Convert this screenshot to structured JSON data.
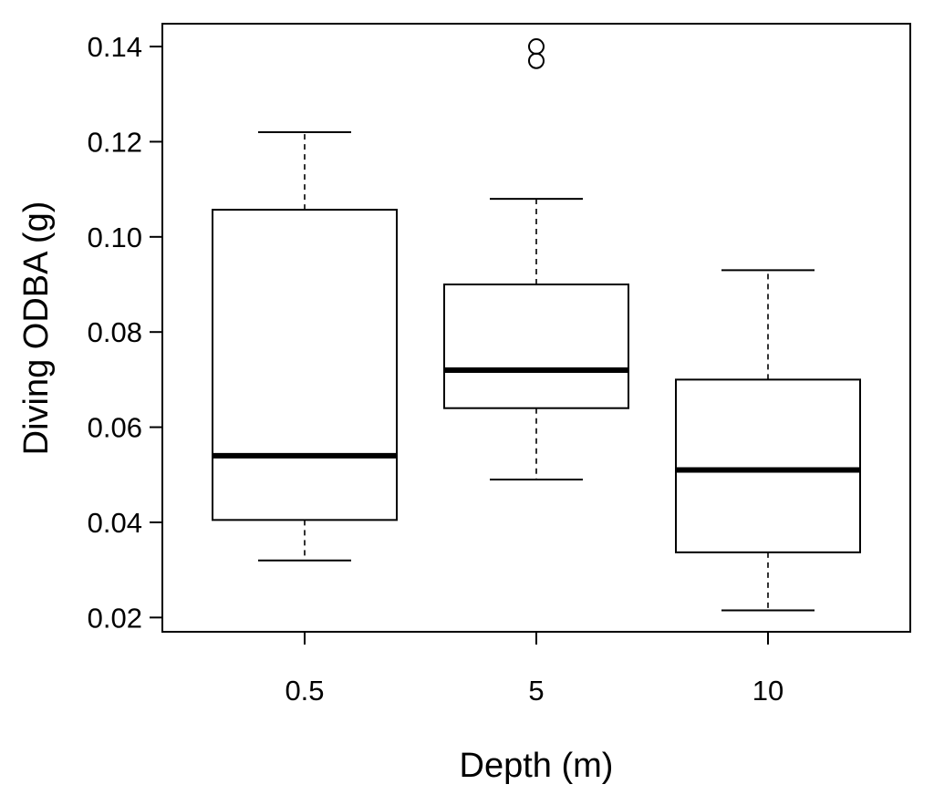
{
  "chart_data": {
    "type": "box",
    "title": "",
    "xlabel": "Depth (m)",
    "ylabel": "Diving ODBA (g)",
    "ylim": [
      0.017,
      0.1448
    ],
    "y_ticks": [
      0.02,
      0.04,
      0.06,
      0.08,
      0.1,
      0.12,
      0.14
    ],
    "y_tick_labels": [
      "0.02",
      "0.04",
      "0.06",
      "0.08",
      "0.10",
      "0.12",
      "0.14"
    ],
    "categories": [
      "0.5",
      "5",
      "10"
    ],
    "boxes": [
      {
        "category": "0.5",
        "whisker_low": 0.032,
        "q1": 0.0405,
        "median": 0.054,
        "q3": 0.1057,
        "whisker_high": 0.122,
        "outliers": []
      },
      {
        "category": "5",
        "whisker_low": 0.049,
        "q1": 0.064,
        "median": 0.072,
        "q3": 0.09,
        "whisker_high": 0.108,
        "outliers": [
          0.137,
          0.14
        ]
      },
      {
        "category": "10",
        "whisker_low": 0.0215,
        "q1": 0.0337,
        "median": 0.051,
        "q3": 0.07,
        "whisker_high": 0.093,
        "outliers": []
      }
    ],
    "grid": false,
    "legend": "none"
  }
}
